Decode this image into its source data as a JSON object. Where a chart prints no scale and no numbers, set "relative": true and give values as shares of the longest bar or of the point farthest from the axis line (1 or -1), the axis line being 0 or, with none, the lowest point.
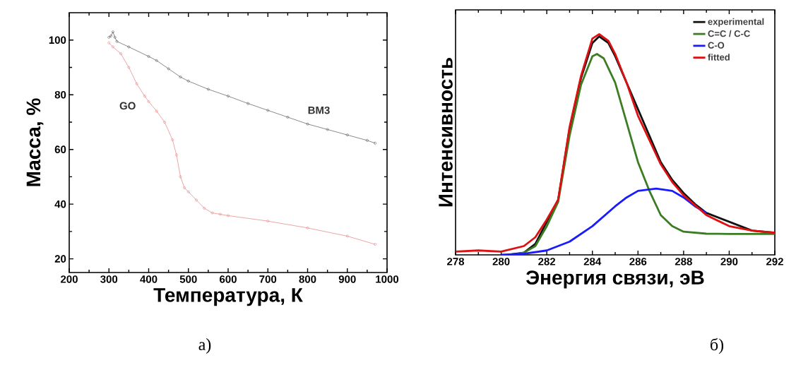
{
  "chart_data": [
    {
      "type": "line",
      "xlabel": "Температура, К",
      "ylabel": "Масса, %",
      "xlim": [
        200,
        1000
      ],
      "ylim": [
        15,
        110
      ],
      "xticks": [
        200,
        300,
        400,
        500,
        600,
        700,
        800,
        900,
        1000
      ],
      "yticks": [
        20,
        40,
        60,
        80,
        100
      ],
      "marker": "circle",
      "annotations": [
        "а)"
      ],
      "series": [
        {
          "name": "BM3",
          "color": "#3a3a3a",
          "x": [
            300,
            305,
            310,
            315,
            320,
            350,
            400,
            420,
            450,
            480,
            500,
            550,
            600,
            650,
            700,
            750,
            800,
            850,
            900,
            950,
            970
          ],
          "values": [
            101,
            101.5,
            103,
            101,
            99.5,
            97.5,
            94,
            92.5,
            89.5,
            86.5,
            85,
            82,
            79.5,
            76.8,
            74.3,
            71.8,
            69.3,
            67.3,
            65.3,
            63.3,
            62.3
          ]
        },
        {
          "name": "GO",
          "color": "#e06868",
          "x": [
            300,
            310,
            330,
            350,
            370,
            390,
            400,
            420,
            440,
            460,
            470,
            480,
            490,
            500,
            520,
            540,
            560,
            580,
            600,
            700,
            800,
            900,
            970
          ],
          "values": [
            99,
            97.5,
            95,
            90,
            84,
            79.5,
            77.5,
            74,
            70,
            63.5,
            58,
            50,
            46,
            44.5,
            41.5,
            38.5,
            36.8,
            36.3,
            35.8,
            33.8,
            31.3,
            28.3,
            25.3
          ]
        }
      ]
    },
    {
      "type": "line",
      "relative": true,
      "xlabel": "Энергия связи, эВ",
      "ylabel": "Интенсивность",
      "xlim": [
        278,
        292
      ],
      "xticks": [
        278,
        280,
        282,
        284,
        286,
        288,
        290,
        292
      ],
      "legend": "top right",
      "annotations": [
        "б)"
      ],
      "series": [
        {
          "name": "experimental",
          "color": "#111111",
          "x": [
            280.3,
            281,
            281.5,
            282,
            282.5,
            283,
            283.5,
            284,
            284.3,
            284.7,
            285,
            285.5,
            286,
            286.5,
            287,
            287.5,
            288,
            288.5,
            289,
            290,
            291,
            292
          ],
          "values": [
            0,
            0.01,
            0.05,
            0.15,
            0.25,
            0.57,
            0.8,
            0.96,
            0.99,
            0.96,
            0.9,
            null,
            null,
            null,
            0.42,
            0.34,
            0.28,
            0.23,
            0.19,
            null,
            0.11,
            0.1
          ]
        },
        {
          "name": "C=C / C-C",
          "color": "#3a7d22",
          "x": [
            280.5,
            281,
            281.5,
            282,
            282.5,
            283,
            283.5,
            284,
            284.2,
            284.5,
            285,
            285.5,
            286,
            286.5,
            287,
            287.5,
            288,
            289,
            290,
            291,
            292
          ],
          "values": [
            0,
            0.01,
            0.04,
            0.13,
            0.24,
            0.54,
            0.77,
            0.9,
            0.91,
            0.89,
            0.78,
            0.6,
            0.42,
            0.29,
            0.18,
            0.13,
            0.105,
            0.096,
            0.095,
            0.095,
            0.095
          ]
        },
        {
          "name": "C-O",
          "color": "#1a1aff",
          "x": [
            280,
            281,
            282,
            283,
            284,
            285,
            285.5,
            286,
            286.8,
            287.5,
            288,
            288.5,
            289
          ],
          "values": [
            0,
            0.005,
            0.02,
            0.06,
            0.13,
            0.22,
            0.26,
            0.29,
            0.3,
            0.29,
            0.26,
            0.22,
            0.19
          ]
        },
        {
          "name": "fitted",
          "color": "#dd1111",
          "x": [
            278,
            279,
            280,
            281,
            281.5,
            282,
            282.5,
            283,
            283.5,
            284,
            284.3,
            284.7,
            285,
            285.5,
            286,
            286.5,
            287,
            287.5,
            288,
            289,
            290,
            291,
            292
          ],
          "values": [
            0.015,
            0.02,
            0.015,
            0.04,
            0.08,
            0.16,
            0.25,
            0.58,
            0.81,
            0.98,
            1,
            0.97,
            0.91,
            0.78,
            0.63,
            0.52,
            0.41,
            0.33,
            0.27,
            0.18,
            0.13,
            0.11,
            0.1
          ]
        }
      ]
    }
  ]
}
